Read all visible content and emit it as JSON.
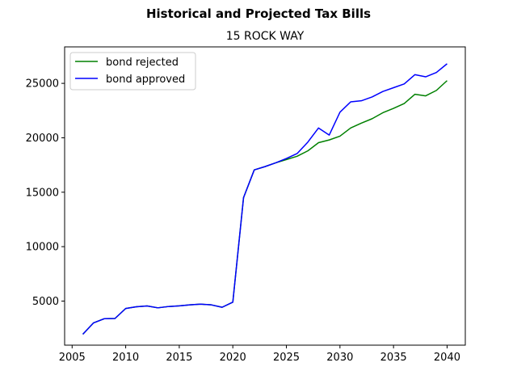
{
  "chart_data": {
    "type": "line",
    "title": "Historical and Projected Tax Bills",
    "subtitle": "15 ROCK WAY",
    "xlabel": "",
    "ylabel": "",
    "xlim": [
      2004.3,
      2041.7
    ],
    "ylim": [
      950,
      28350
    ],
    "xticks": [
      2005,
      2010,
      2015,
      2020,
      2025,
      2030,
      2035,
      2040
    ],
    "yticks": [
      5000,
      10000,
      15000,
      20000,
      25000
    ],
    "legend_position": "upper-left",
    "grid": false,
    "x": [
      2006,
      2007,
      2008,
      2009,
      2010,
      2011,
      2012,
      2013,
      2014,
      2015,
      2016,
      2017,
      2018,
      2019,
      2020,
      2021,
      2022,
      2023,
      2024,
      2025,
      2026,
      2027,
      2028,
      2029,
      2030,
      2031,
      2032,
      2033,
      2034,
      2035,
      2036,
      2037,
      2038,
      2039,
      2040
    ],
    "series": [
      {
        "name": "bond rejected",
        "color": "#008000",
        "values": [
          1950,
          3000,
          3380,
          3400,
          4320,
          4480,
          4550,
          4380,
          4500,
          4560,
          4650,
          4720,
          4650,
          4430,
          4900,
          14500,
          17050,
          17350,
          17700,
          18000,
          18300,
          18800,
          19550,
          19800,
          20150,
          20900,
          21350,
          21750,
          22300,
          22700,
          23150,
          24000,
          23850,
          24350,
          25250
        ]
      },
      {
        "name": "bond approved",
        "color": "#0000ff",
        "values": [
          1950,
          3000,
          3380,
          3400,
          4320,
          4480,
          4550,
          4380,
          4500,
          4560,
          4650,
          4720,
          4650,
          4430,
          4900,
          14500,
          17050,
          17350,
          17700,
          18100,
          18550,
          19600,
          20900,
          20250,
          22350,
          23300,
          23400,
          23750,
          24250,
          24600,
          24950,
          25800,
          25600,
          26000,
          26800
        ]
      }
    ]
  }
}
